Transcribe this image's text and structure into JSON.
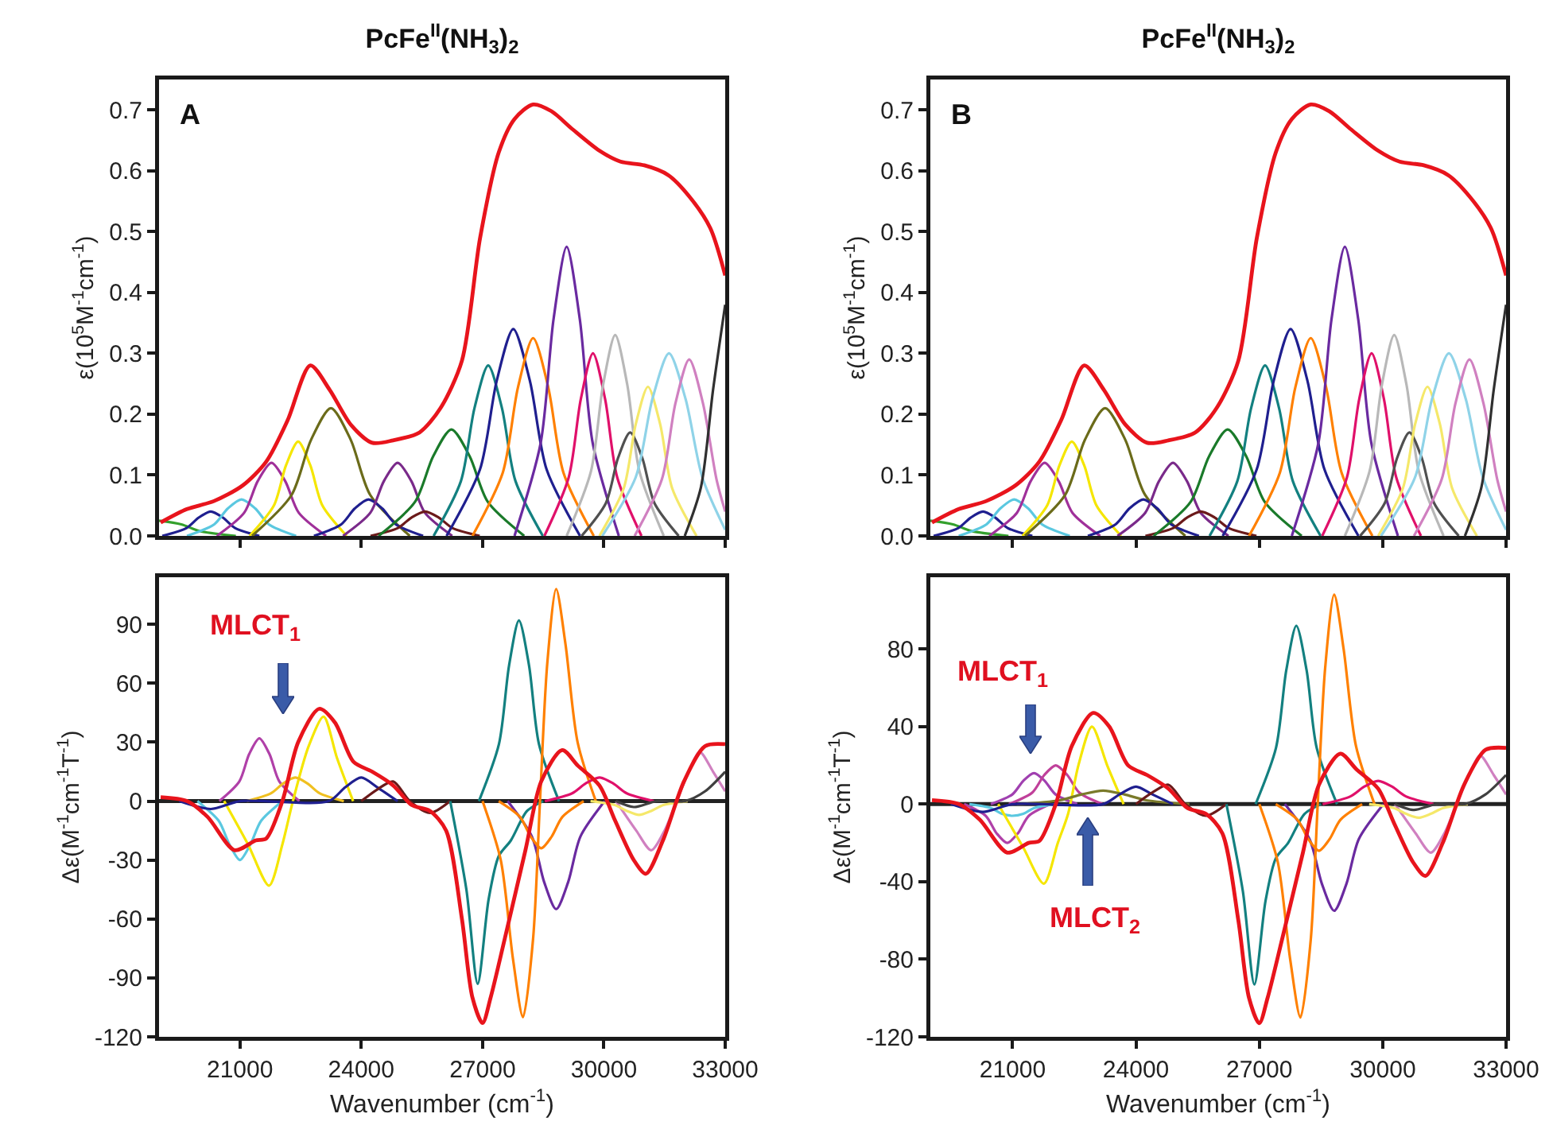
{
  "chart_data": [
    {
      "type": "line",
      "title": "PcFe$^{II}$(NH$_{3}$)$_{2}$",
      "ylabel": "ε(10$^{5}$M$^{-1}$cm$^{-1}$)",
      "annotations": [
        "A"
      ],
      "xlim": [
        19000,
        33000
      ],
      "xticks": [
        21000,
        24000,
        27000,
        30000,
        33000
      ],
      "tick_labels": "y",
      "ylim": [
        0,
        0.75
      ],
      "yticks": [
        {
          "value": 0,
          "label": "0.0"
        },
        0.1,
        0.2,
        0.3,
        0.4,
        0.5,
        0.6,
        0.7
      ],
      "series": [
        {
          "color": "#33a02c",
          "x": [
            19000,
            19550,
            20000,
            20900
          ],
          "values": [
            0.025,
            0.019,
            0.008,
            0
          ]
        },
        {
          "color": "#1f1f8f",
          "x": [
            19080,
            19680,
            19980,
            20280,
            20580,
            20880,
            21480
          ],
          "values": [
            0,
            0.013,
            0.03,
            0.04,
            0.03,
            0.013,
            0
          ]
        },
        {
          "color": "#5bc8e0",
          "x": [
            19690,
            20365,
            20700,
            21040,
            21380,
            21715,
            22390
          ],
          "values": [
            0,
            0.019,
            0.045,
            0.06,
            0.045,
            0.019,
            0
          ]
        },
        {
          "color": "#a0309a",
          "x": [
            20430,
            21105,
            21440,
            21780,
            22120,
            22455,
            23130
          ],
          "values": [
            0,
            0.038,
            0.09,
            0.12,
            0.09,
            0.038,
            0
          ]
        },
        {
          "color": "#f5e600",
          "x": [
            21240,
            21840,
            22140,
            22440,
            22740,
            23040,
            23640
          ],
          "values": [
            0,
            0.05,
            0.116,
            0.155,
            0.116,
            0.05,
            0
          ]
        },
        {
          "color": "#6b6b1a",
          "x": [
            21300,
            22275,
            22760,
            23250,
            23740,
            24225,
            25200
          ],
          "values": [
            0,
            0.067,
            0.158,
            0.21,
            0.158,
            0.067,
            0
          ]
        },
        {
          "color": "#1f1f8f",
          "x": [
            22830,
            23505,
            23840,
            24180,
            24520,
            24855,
            25530
          ],
          "values": [
            0,
            0.019,
            0.045,
            0.06,
            0.045,
            0.019,
            0
          ]
        },
        {
          "color": "#7a2a8a",
          "x": [
            23550,
            24225,
            24560,
            24900,
            25240,
            25575,
            26250
          ],
          "values": [
            0,
            0.038,
            0.09,
            0.12,
            0.09,
            0.038,
            0
          ]
        },
        {
          "color": "#6b1a1a",
          "x": [
            24230,
            24905,
            25240,
            25580,
            25920,
            26255,
            26930
          ],
          "values": [
            0,
            0.013,
            0.03,
            0.04,
            0.03,
            0.013,
            0
          ]
        },
        {
          "color": "#1a7a2a",
          "x": [
            24430,
            25330,
            25780,
            26230,
            26680,
            27130,
            28030
          ],
          "values": [
            0,
            0.056,
            0.131,
            0.175,
            0.131,
            0.056,
            0
          ]
        },
        {
          "color": "#138080",
          "x": [
            25790,
            26465,
            26800,
            27140,
            27480,
            27815,
            28490
          ],
          "values": [
            0,
            0.09,
            0.21,
            0.28,
            0.21,
            0.09,
            0
          ]
        },
        {
          "color": "#1f1f8f",
          "x": [
            26110,
            26935,
            27350,
            27760,
            28170,
            28585,
            29410
          ],
          "values": [
            0,
            0.109,
            0.255,
            0.34,
            0.255,
            0.109,
            0
          ]
        },
        {
          "color": "#ff8000",
          "x": [
            26750,
            27500,
            27875,
            28250,
            28625,
            29000,
            29750
          ],
          "values": [
            0,
            0.104,
            0.244,
            0.325,
            0.244,
            0.104,
            0
          ]
        },
        {
          "color": "#6a2aa0",
          "x": [
            27790,
            28435,
            28755,
            29080,
            29405,
            29725,
            30370
          ],
          "values": [
            0,
            0.152,
            0.356,
            0.475,
            0.356,
            0.152,
            0
          ]
        },
        {
          "color": "#e0106a",
          "x": [
            28530,
            29130,
            29430,
            29730,
            30030,
            30330,
            30930
          ],
          "values": [
            0,
            0.096,
            0.225,
            0.3,
            0.225,
            0.096,
            0
          ]
        },
        {
          "color": "#b8b8b8",
          "x": [
            29080,
            29680,
            29980,
            30280,
            30580,
            30880,
            31480
          ],
          "values": [
            0,
            0.106,
            0.248,
            0.33,
            0.248,
            0.106,
            0
          ]
        },
        {
          "color": "#505050",
          "x": [
            29450,
            30050,
            30350,
            30650,
            30950,
            31250,
            31850
          ],
          "values": [
            0,
            0.054,
            0.128,
            0.17,
            0.128,
            0.054,
            0
          ]
        },
        {
          "color": "#f5e86a",
          "x": [
            29890,
            30490,
            30790,
            31090,
            31390,
            31690,
            32290
          ],
          "values": [
            0,
            0.078,
            0.184,
            0.245,
            0.184,
            0.078,
            0
          ]
        },
        {
          "color": "#8fd3e8",
          "x": [
            29960,
            30785,
            31200,
            31610,
            32020,
            32435,
            33000
          ],
          "values": [
            0,
            0.096,
            0.225,
            0.3,
            0.225,
            0.096,
            0.01
          ]
        },
        {
          "color": "#d080c0",
          "x": [
            30760,
            31435,
            31770,
            32110,
            32450,
            32785,
            33000
          ],
          "values": [
            0,
            0.093,
            0.218,
            0.29,
            0.218,
            0.093,
            0.04
          ]
        },
        {
          "color": "#303030",
          "x": [
            32000,
            32400,
            32700,
            33000
          ],
          "values": [
            0,
            0.08,
            0.24,
            0.38
          ]
        },
        {
          "color": "#e8141c",
          "x": [
            19040,
            19690,
            20350,
            21070,
            21650,
            22180,
            22740,
            23220,
            23740,
            24270,
            24790,
            25440,
            25960,
            26490,
            26940,
            27400,
            27790,
            28250,
            28700,
            29230,
            29890,
            30410,
            31000,
            31590,
            32110,
            32630,
            33000
          ],
          "values": [
            0.022,
            0.044,
            0.057,
            0.083,
            0.122,
            0.19,
            0.28,
            0.24,
            0.183,
            0.153,
            0.157,
            0.17,
            0.21,
            0.288,
            0.49,
            0.63,
            0.685,
            0.709,
            0.698,
            0.668,
            0.633,
            0.615,
            0.609,
            0.593,
            0.558,
            0.506,
            0.428
          ]
        }
      ]
    },
    {
      "type": "line",
      "xlabel": "Wavenumber (cm$^{-1}$)",
      "ylabel": "Δε(M$^{-1}$cm$^{-1}$T$^{-1}$)",
      "annotations": [
        "MLCT$_{1}$"
      ],
      "xlim": [
        19000,
        33000
      ],
      "xticks": [
        21000,
        24000,
        27000,
        30000,
        33000
      ],
      "ylim": [
        -120,
        114
      ],
      "yticks": [
        -120,
        -90,
        -60,
        -30,
        0,
        30,
        60,
        90
      ],
      "ref_lines": [
        {
          "axis": "y",
          "value": 0,
          "color": "#222222"
        }
      ],
      "series": [
        {
          "color": "#b040a8",
          "x": [
            20490,
            20985,
            21230,
            21480,
            21730,
            21975,
            22470
          ],
          "values": [
            0,
            10,
            24,
            32,
            24,
            10,
            0
          ]
        },
        {
          "color": "#5bc8e0",
          "x": [
            19950,
            20475,
            20740,
            21000,
            21260,
            21525,
            22050
          ],
          "values": [
            0,
            -10,
            -22,
            -30,
            -22,
            -10,
            0
          ]
        },
        {
          "color": "#f5e600",
          "x": [
            20610,
            21200,
            21720,
            22050,
            22310,
            22700,
            23070,
            23400,
            23800
          ],
          "values": [
            0,
            -22,
            -43,
            -22,
            0,
            28,
            43,
            22,
            0
          ]
        },
        {
          "color": "#f0c020",
          "x": [
            21170,
            21770,
            22070,
            22370,
            22670,
            22970,
            23570
          ],
          "values": [
            0,
            4,
            9,
            12,
            9,
            4,
            0
          ]
        },
        {
          "color": "#1f1f8f",
          "x": [
            19500,
            20280,
            21000,
            23200,
            23600,
            24000,
            24400,
            24900
          ],
          "values": [
            0,
            -4,
            0,
            0,
            7,
            12,
            7,
            0
          ]
        },
        {
          "color": "#6b1a1a",
          "x": [
            24000,
            24400,
            24790,
            25200,
            25700,
            26200
          ],
          "values": [
            0,
            6,
            10,
            0,
            -6,
            0
          ]
        },
        {
          "color": "#6a2aa0",
          "x": [
            27620,
            28220,
            28520,
            28820,
            29120,
            29420,
            30020
          ],
          "values": [
            0,
            -18,
            -41,
            -55,
            -41,
            -18,
            0
          ]
        },
        {
          "color": "#138080",
          "x": [
            26910,
            27405,
            27655,
            27900,
            28150,
            28395,
            28890
          ],
          "values": [
            0,
            29,
            69,
            92,
            69,
            29,
            0
          ]
        },
        {
          "color": "#138080",
          "x": [
            26200,
            26600,
            26880,
            27150,
            27400,
            27700,
            28100,
            28500
          ],
          "values": [
            0,
            -45,
            -93,
            -50,
            -28,
            -20,
            -5,
            0
          ]
        },
        {
          "color": "#ff8000",
          "x": [
            27000,
            27450,
            27750,
            28000,
            28250,
            28420,
            28600,
            28820,
            29050,
            29350,
            29800
          ],
          "values": [
            0,
            -30,
            -80,
            -110,
            -70,
            0,
            70,
            108,
            80,
            30,
            0
          ]
        },
        {
          "color": "#ff8000",
          "x": [
            27400,
            27925,
            28190,
            28450,
            28710,
            28975,
            29500
          ],
          "values": [
            0,
            -8,
            -18,
            -24,
            -18,
            -8,
            0
          ]
        },
        {
          "color": "#e0106a",
          "x": [
            28540,
            29215,
            29550,
            29890,
            30230,
            30565,
            31240
          ],
          "values": [
            0,
            4,
            9,
            12,
            9,
            4,
            0
          ]
        },
        {
          "color": "#d080c0",
          "x": [
            30300,
            30800,
            31170,
            31500,
            31800,
            32100,
            32370,
            32700,
            33000
          ],
          "values": [
            0,
            -15,
            -25,
            -15,
            0,
            15,
            25,
            15,
            5
          ]
        },
        {
          "color": "#f5e86a",
          "x": [
            29670,
            30270,
            30570,
            30870,
            31170,
            31470,
            32070
          ],
          "values": [
            0,
            -2,
            -5,
            -7,
            -5,
            -2,
            0
          ]
        },
        {
          "color": "#404040",
          "x": [
            30300,
            30740,
            31300,
            32000,
            32500,
            33000
          ],
          "values": [
            0,
            -3,
            0,
            0,
            5,
            15
          ]
        },
        {
          "color": "#e8141c",
          "x": [
            19040,
            19690,
            20200,
            20870,
            21390,
            21650,
            22050,
            22440,
            22960,
            23350,
            23810,
            24270,
            24790,
            25250,
            25700,
            26100,
            26490,
            26750,
            27000,
            27200,
            27550,
            28060,
            28450,
            28970,
            29360,
            29890,
            30280,
            30740,
            31040,
            31460,
            31980,
            32500,
            33000
          ],
          "values": [
            2,
            0,
            -8,
            -25,
            -20,
            -19,
            0,
            30,
            47,
            40,
            20,
            15,
            8,
            -2,
            -5,
            -15,
            -60,
            -100,
            -113,
            -100,
            -70,
            -25,
            10,
            26,
            18,
            8,
            -10,
            -30,
            -37,
            -20,
            10,
            28,
            29
          ]
        }
      ]
    },
    {
      "type": "line",
      "title": "PcFe$^{II}$(NH$_{3}$)$_{2}$",
      "ylabel": "ε(10$^{5}$M$^{-1}$cm$^{-1}$)",
      "annotations": [
        "B"
      ],
      "xlim": [
        19000,
        33000
      ],
      "xticks": [
        21000,
        24000,
        27000,
        30000,
        33000
      ],
      "tick_labels": "y",
      "ylim": [
        0,
        0.75
      ],
      "yticks": [
        {
          "value": 0,
          "label": "0.0"
        },
        0.1,
        0.2,
        0.3,
        0.4,
        0.5,
        0.6,
        0.7
      ],
      "series": [
        {
          "color": "#33a02c",
          "x": [
            19000,
            19550,
            20000,
            20900
          ],
          "values": [
            0.025,
            0.019,
            0.008,
            0
          ]
        },
        {
          "color": "#1f1f8f",
          "x": [
            19080,
            19680,
            19980,
            20280,
            20580,
            20880,
            21480
          ],
          "values": [
            0,
            0.013,
            0.03,
            0.04,
            0.03,
            0.013,
            0
          ]
        },
        {
          "color": "#5bc8e0",
          "x": [
            19690,
            20365,
            20700,
            21040,
            21380,
            21715,
            22390
          ],
          "values": [
            0,
            0.019,
            0.045,
            0.06,
            0.045,
            0.019,
            0
          ]
        },
        {
          "color": "#a0309a",
          "x": [
            20430,
            21105,
            21440,
            21780,
            22120,
            22455,
            23130
          ],
          "values": [
            0,
            0.038,
            0.09,
            0.12,
            0.09,
            0.038,
            0
          ]
        },
        {
          "color": "#f5e600",
          "x": [
            21240,
            21840,
            22140,
            22440,
            22740,
            23040,
            23640
          ],
          "values": [
            0,
            0.05,
            0.116,
            0.155,
            0.116,
            0.05,
            0
          ]
        },
        {
          "color": "#6b6b1a",
          "x": [
            21300,
            22275,
            22760,
            23250,
            23740,
            24225,
            25200
          ],
          "values": [
            0,
            0.067,
            0.158,
            0.21,
            0.158,
            0.067,
            0
          ]
        },
        {
          "color": "#1f1f8f",
          "x": [
            22830,
            23505,
            23840,
            24180,
            24520,
            24855,
            25530
          ],
          "values": [
            0,
            0.019,
            0.045,
            0.06,
            0.045,
            0.019,
            0
          ]
        },
        {
          "color": "#7a2a8a",
          "x": [
            23550,
            24225,
            24560,
            24900,
            25240,
            25575,
            26250
          ],
          "values": [
            0,
            0.038,
            0.09,
            0.12,
            0.09,
            0.038,
            0
          ]
        },
        {
          "color": "#6b1a1a",
          "x": [
            24230,
            24905,
            25240,
            25580,
            25920,
            26255,
            26930
          ],
          "values": [
            0,
            0.013,
            0.03,
            0.04,
            0.03,
            0.013,
            0
          ]
        },
        {
          "color": "#1a7a2a",
          "x": [
            24430,
            25330,
            25780,
            26230,
            26680,
            27130,
            28030
          ],
          "values": [
            0,
            0.056,
            0.131,
            0.175,
            0.131,
            0.056,
            0
          ]
        },
        {
          "color": "#138080",
          "x": [
            25790,
            26465,
            26800,
            27140,
            27480,
            27815,
            28490
          ],
          "values": [
            0,
            0.09,
            0.21,
            0.28,
            0.21,
            0.09,
            0
          ]
        },
        {
          "color": "#1f1f8f",
          "x": [
            26110,
            26935,
            27350,
            27760,
            28170,
            28585,
            29410
          ],
          "values": [
            0,
            0.109,
            0.255,
            0.34,
            0.255,
            0.109,
            0
          ]
        },
        {
          "color": "#ff8000",
          "x": [
            26750,
            27500,
            27875,
            28250,
            28625,
            29000,
            29750
          ],
          "values": [
            0,
            0.104,
            0.244,
            0.325,
            0.244,
            0.104,
            0
          ]
        },
        {
          "color": "#6a2aa0",
          "x": [
            27790,
            28435,
            28755,
            29080,
            29405,
            29725,
            30370
          ],
          "values": [
            0,
            0.152,
            0.356,
            0.475,
            0.356,
            0.152,
            0
          ]
        },
        {
          "color": "#e0106a",
          "x": [
            28530,
            29130,
            29430,
            29730,
            30030,
            30330,
            30930
          ],
          "values": [
            0,
            0.096,
            0.225,
            0.3,
            0.225,
            0.096,
            0
          ]
        },
        {
          "color": "#b8b8b8",
          "x": [
            29080,
            29680,
            29980,
            30280,
            30580,
            30880,
            31480
          ],
          "values": [
            0,
            0.106,
            0.248,
            0.33,
            0.248,
            0.106,
            0
          ]
        },
        {
          "color": "#505050",
          "x": [
            29450,
            30050,
            30350,
            30650,
            30950,
            31250,
            31850
          ],
          "values": [
            0,
            0.054,
            0.128,
            0.17,
            0.128,
            0.054,
            0
          ]
        },
        {
          "color": "#f5e86a",
          "x": [
            29890,
            30490,
            30790,
            31090,
            31390,
            31690,
            32290
          ],
          "values": [
            0,
            0.078,
            0.184,
            0.245,
            0.184,
            0.078,
            0
          ]
        },
        {
          "color": "#8fd3e8",
          "x": [
            29960,
            30785,
            31200,
            31610,
            32020,
            32435,
            33000
          ],
          "values": [
            0,
            0.096,
            0.225,
            0.3,
            0.225,
            0.096,
            0.01
          ]
        },
        {
          "color": "#d080c0",
          "x": [
            30760,
            31435,
            31770,
            32110,
            32450,
            32785,
            33000
          ],
          "values": [
            0,
            0.093,
            0.218,
            0.29,
            0.218,
            0.093,
            0.04
          ]
        },
        {
          "color": "#303030",
          "x": [
            32000,
            32400,
            32700,
            33000
          ],
          "values": [
            0,
            0.08,
            0.24,
            0.38
          ]
        },
        {
          "color": "#e8141c",
          "x": [
            19040,
            19690,
            20350,
            21070,
            21650,
            22180,
            22740,
            23220,
            23740,
            24270,
            24790,
            25440,
            25960,
            26490,
            26940,
            27400,
            27790,
            28250,
            28700,
            29230,
            29890,
            30410,
            31000,
            31590,
            32110,
            32630,
            33000
          ],
          "values": [
            0.022,
            0.044,
            0.057,
            0.083,
            0.122,
            0.19,
            0.28,
            0.24,
            0.183,
            0.153,
            0.157,
            0.17,
            0.21,
            0.288,
            0.49,
            0.63,
            0.685,
            0.709,
            0.698,
            0.668,
            0.633,
            0.615,
            0.609,
            0.593,
            0.558,
            0.506,
            0.428
          ]
        }
      ]
    },
    {
      "type": "line",
      "xlabel": "Wavenumber (cm$^{-1}$)",
      "ylabel": "Δε(M$^{-1}$cm$^{-1}$T$^{-1}$)",
      "annotations": [
        "MLCT$_{1}$",
        "MLCT$_{2}$"
      ],
      "xlim": [
        19000,
        33000
      ],
      "xticks": [
        21000,
        24000,
        27000,
        30000,
        33000
      ],
      "ylim": [
        -120,
        117
      ],
      "yticks": [
        -120,
        -80,
        -40,
        0,
        40,
        80
      ],
      "ref_lines": [
        {
          "axis": "y",
          "value": 0,
          "color": "#222222"
        }
      ],
      "series": [
        {
          "color": "#b040a8",
          "x": [
            19820,
            20345,
            20610,
            20870,
            21130,
            21395,
            21920
          ],
          "values": [
            0,
            -6,
            -15,
            -20,
            -15,
            -6,
            0
          ]
        },
        {
          "color": "#a040b0",
          "x": [
            20470,
            20995,
            21260,
            21520,
            21780,
            22045,
            22570
          ],
          "values": [
            0,
            5,
            12,
            16,
            12,
            5,
            0
          ]
        },
        {
          "color": "#c0409a",
          "x": [
            20910,
            21480,
            21770,
            22050,
            22330,
            22620,
            23190
          ],
          "values": [
            0,
            6,
            15,
            20,
            15,
            6,
            0
          ]
        },
        {
          "color": "#5bc8e0",
          "x": [
            19950,
            20475,
            20740,
            21000,
            21260,
            21525,
            22050
          ],
          "values": [
            0,
            -2,
            -5,
            -6,
            -5,
            -2,
            0
          ]
        },
        {
          "color": "#f5e600",
          "x": [
            20650,
            21250,
            21760,
            22100,
            22350,
            22600,
            22930,
            23300,
            23700
          ],
          "values": [
            0,
            -22,
            -41,
            -20,
            -5,
            20,
            40,
            20,
            0
          ]
        },
        {
          "color": "#7a7a2a",
          "x": [
            21100,
            22150,
            22680,
            23200,
            23720,
            24250,
            25300
          ],
          "values": [
            0,
            2,
            5,
            7,
            5,
            2,
            0
          ]
        },
        {
          "color": "#1f1f8f",
          "x": [
            19500,
            20280,
            21000,
            23200,
            23600,
            24000,
            24400,
            24900
          ],
          "values": [
            0,
            -4,
            0,
            0,
            5,
            9,
            5,
            0
          ]
        },
        {
          "color": "#6b1a1a",
          "x": [
            24000,
            24400,
            24790,
            25200,
            25700,
            26200
          ],
          "values": [
            0,
            6,
            10,
            0,
            -6,
            0
          ]
        },
        {
          "color": "#6a2aa0",
          "x": [
            27620,
            28220,
            28520,
            28820,
            29120,
            29420,
            30020
          ],
          "values": [
            0,
            -18,
            -41,
            -55,
            -41,
            -18,
            0
          ]
        },
        {
          "color": "#138080",
          "x": [
            26910,
            27405,
            27655,
            27900,
            28150,
            28395,
            28890
          ],
          "values": [
            0,
            29,
            69,
            92,
            69,
            29,
            0
          ]
        },
        {
          "color": "#138080",
          "x": [
            26200,
            26600,
            26880,
            27150,
            27400,
            27700,
            28100,
            28500
          ],
          "values": [
            0,
            -45,
            -93,
            -50,
            -28,
            -20,
            -5,
            0
          ]
        },
        {
          "color": "#ff8000",
          "x": [
            27000,
            27450,
            27750,
            28000,
            28250,
            28420,
            28600,
            28820,
            29050,
            29350,
            29800
          ],
          "values": [
            0,
            -30,
            -80,
            -110,
            -70,
            0,
            70,
            108,
            80,
            30,
            0
          ]
        },
        {
          "color": "#ff8000",
          "x": [
            27400,
            27925,
            28190,
            28450,
            28710,
            28975,
            29500
          ],
          "values": [
            0,
            -8,
            -18,
            -24,
            -18,
            -8,
            0
          ]
        },
        {
          "color": "#e0106a",
          "x": [
            28540,
            29215,
            29550,
            29890,
            30230,
            30565,
            31240
          ],
          "values": [
            0,
            4,
            9,
            12,
            9,
            4,
            0
          ]
        },
        {
          "color": "#d080c0",
          "x": [
            30300,
            30800,
            31170,
            31500,
            31800,
            32100,
            32370,
            32700,
            33000
          ],
          "values": [
            0,
            -15,
            -25,
            -15,
            0,
            15,
            25,
            15,
            5
          ]
        },
        {
          "color": "#f5e86a",
          "x": [
            29670,
            30270,
            30570,
            30870,
            31170,
            31470,
            32070
          ],
          "values": [
            0,
            -2,
            -5,
            -7,
            -5,
            -2,
            0
          ]
        },
        {
          "color": "#404040",
          "x": [
            30300,
            30740,
            31300,
            32000,
            32500,
            33000
          ],
          "values": [
            0,
            -3,
            0,
            0,
            5,
            15
          ]
        },
        {
          "color": "#e8141c",
          "x": [
            19040,
            19690,
            20200,
            20870,
            21390,
            21650,
            22050,
            22440,
            22960,
            23350,
            23810,
            24270,
            24790,
            25250,
            25700,
            26100,
            26490,
            26750,
            27000,
            27200,
            27550,
            28060,
            28450,
            28970,
            29360,
            29890,
            30280,
            30740,
            31040,
            31460,
            31980,
            32500,
            33000
          ],
          "values": [
            2,
            0,
            -8,
            -25,
            -20,
            -19,
            0,
            30,
            47,
            40,
            20,
            15,
            8,
            -2,
            -5,
            -15,
            -60,
            -100,
            -113,
            -100,
            -70,
            -25,
            10,
            26,
            18,
            8,
            -10,
            -30,
            -37,
            -20,
            10,
            28,
            29
          ]
        }
      ]
    }
  ]
}
